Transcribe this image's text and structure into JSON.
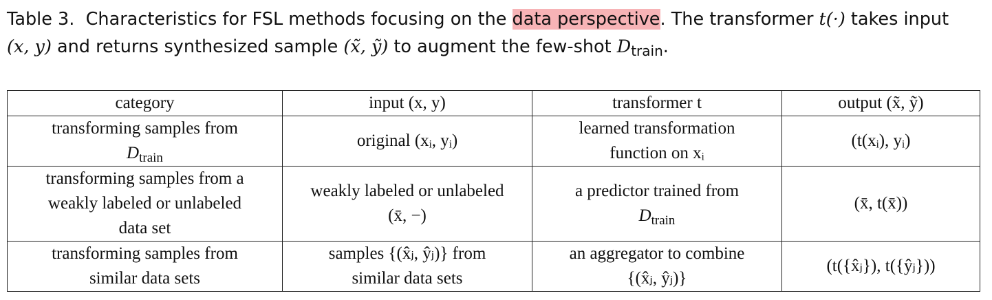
{
  "caption": {
    "label": "Table 3.",
    "part1": "Characteristics for FSL methods focusing on the",
    "highlight": "data perspective",
    "part2": ". The transformer",
    "math_t": "t(·)",
    "part3": "takes input",
    "math_xy": "(x, y)",
    "part4": "and returns synthesized sample",
    "math_xy_tilde": "(x̃, ỹ)",
    "part5": "to augment the few-shot",
    "math_D": "D",
    "math_D_sub": "train",
    "end": "."
  },
  "table": {
    "headers": {
      "category": "category",
      "input": "input (x, y)",
      "transformer": "transformer t",
      "output": "output (x̃, ỹ)"
    },
    "rows": [
      {
        "category_l1": "transforming samples from",
        "category_D": "D",
        "category_D_sub": "train",
        "input": "original (xᵢ, yᵢ)",
        "transformer_l1": "learned transformation",
        "transformer_l2": "function on xᵢ",
        "output": "(t(xᵢ), yᵢ)"
      },
      {
        "category_l1": "transforming samples from a",
        "category_l2": "weakly labeled or unlabeled",
        "category_l3": "data set",
        "input_l1": "weakly labeled or unlabeled",
        "input_l2": "(x̄, −)",
        "transformer_l1": "a predictor trained from",
        "transformer_D": "D",
        "transformer_D_sub": "train",
        "output": "(x̄, t(x̄))"
      },
      {
        "category_l1": "transforming samples from",
        "category_l2": "similar data sets",
        "input_l1": "samples {(x̂ⱼ, ŷⱼ)} from",
        "input_l2": "similar data sets",
        "transformer_l1": "an aggregator to combine",
        "transformer_l2": "{(x̂ⱼ, ŷⱼ)}",
        "output": "(t({x̂ⱼ}), t({ŷⱼ}))"
      }
    ]
  }
}
